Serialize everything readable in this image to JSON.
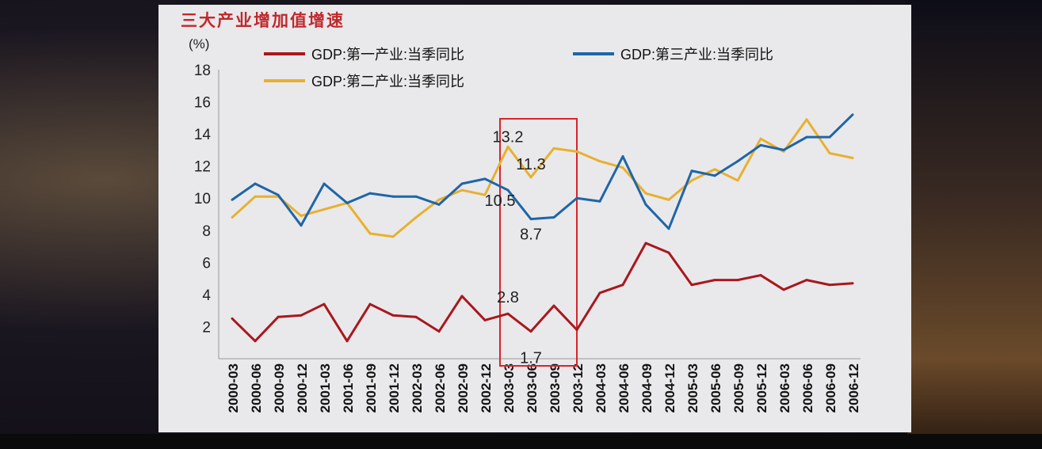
{
  "chart_data": {
    "type": "line",
    "title": "三大产业增加值增速",
    "ylabel": "(%)",
    "xlabel": "",
    "ylim": [
      0,
      18
    ],
    "yticks": [
      2,
      4,
      6,
      8,
      10,
      12,
      14,
      16,
      18
    ],
    "categories": [
      "2000-03",
      "2000-06",
      "2000-09",
      "2000-12",
      "2001-03",
      "2001-06",
      "2001-09",
      "2001-12",
      "2002-03",
      "2002-06",
      "2002-09",
      "2002-12",
      "2003-03",
      "2003-06",
      "2003-09",
      "2003-12",
      "2004-03",
      "2004-06",
      "2004-09",
      "2004-12",
      "2005-03",
      "2005-06",
      "2005-09",
      "2005-12",
      "2006-03",
      "2006-06",
      "2006-09",
      "2006-12"
    ],
    "series": [
      {
        "name": "GDP:第一产业:当季同比",
        "color": "#a8181e",
        "values": [
          2.5,
          1.1,
          2.6,
          2.7,
          3.4,
          1.1,
          3.4,
          2.7,
          2.6,
          1.7,
          3.9,
          2.4,
          2.8,
          1.7,
          3.3,
          1.8,
          4.1,
          4.6,
          7.2,
          6.6,
          4.6,
          4.9,
          4.9,
          5.2,
          4.3,
          4.9,
          4.6,
          4.7
        ]
      },
      {
        "name": "GDP:第二产业:当季同比",
        "color": "#e8b030",
        "values": [
          8.8,
          10.1,
          10.1,
          8.9,
          9.3,
          9.7,
          7.8,
          7.6,
          8.8,
          9.9,
          10.5,
          10.2,
          13.2,
          11.3,
          13.1,
          12.9,
          12.3,
          11.9,
          10.3,
          9.9,
          11.1,
          11.8,
          11.1,
          13.7,
          12.9,
          14.9,
          12.8,
          12.5
        ]
      },
      {
        "name": "GDP:第三产业:当季同比",
        "color": "#1f65a8",
        "values": [
          9.9,
          10.9,
          10.2,
          8.3,
          10.9,
          9.7,
          10.3,
          10.1,
          10.1,
          9.6,
          10.9,
          11.2,
          10.5,
          8.7,
          8.8,
          10.0,
          9.8,
          12.6,
          9.6,
          8.1,
          11.7,
          11.4,
          12.3,
          13.3,
          13.0,
          13.8,
          13.8,
          15.2
        ]
      }
    ],
    "annotations": [
      {
        "text": "13.2",
        "series": 1,
        "x": "2003-03"
      },
      {
        "text": "11.3",
        "series": 1,
        "x": "2003-06"
      },
      {
        "text": "10.5",
        "series": 2,
        "x": "2003-03"
      },
      {
        "text": "8.7",
        "series": 2,
        "x": "2003-06"
      },
      {
        "text": "2.8",
        "series": 0,
        "x": "2003-03"
      },
      {
        "text": "1.7",
        "series": 0,
        "x": "2003-06"
      }
    ],
    "highlight_range": [
      "2003-03",
      "2003-12"
    ],
    "highlight_color": "#d8242c",
    "grid": false,
    "legend_position": "top"
  }
}
